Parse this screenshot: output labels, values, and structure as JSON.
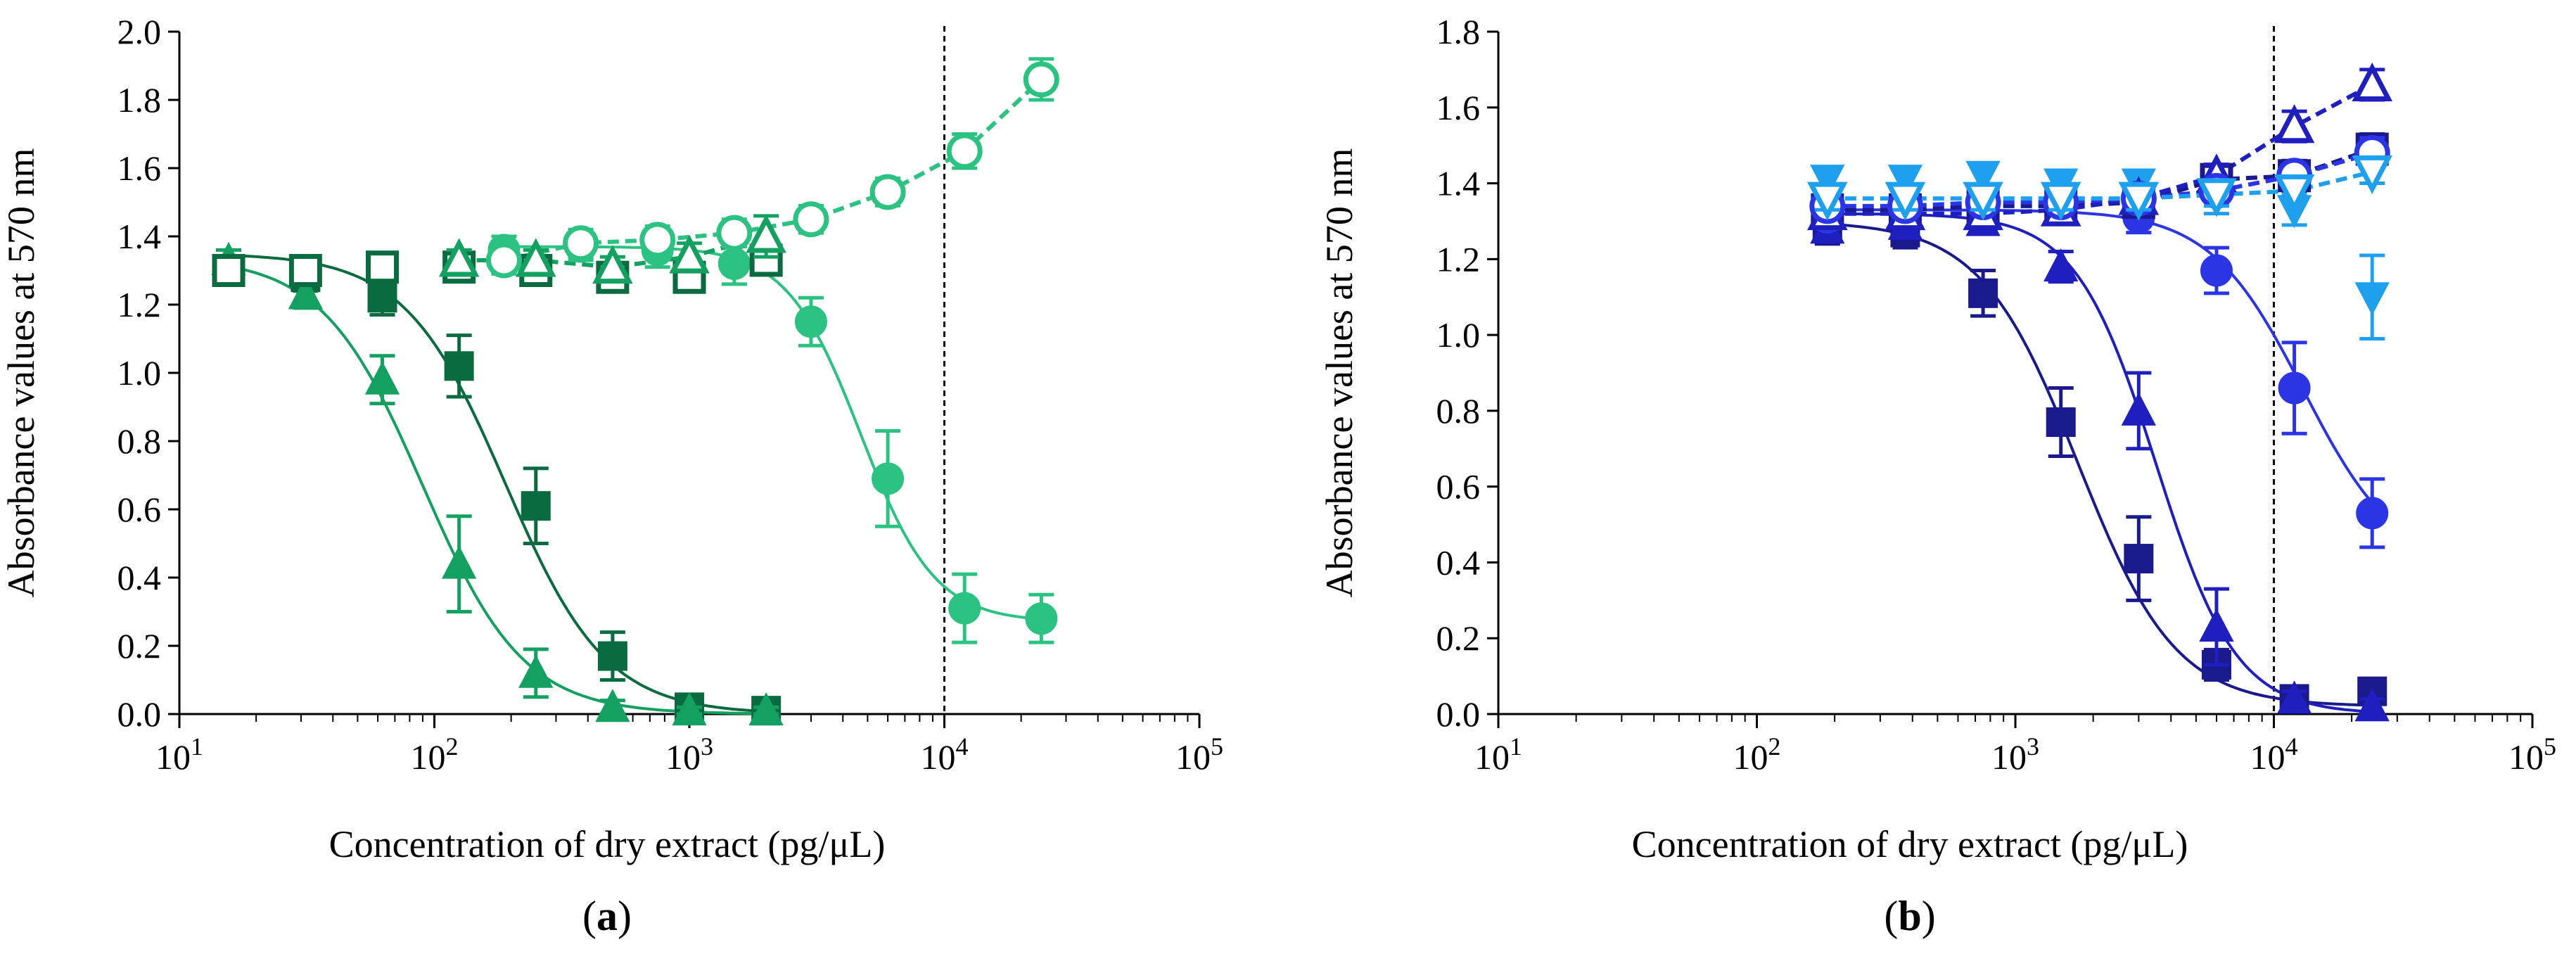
{
  "figure": {
    "panels": [
      {
        "id": "a",
        "letter": "a",
        "open": "(",
        "close": ")"
      },
      {
        "id": "b",
        "letter": "b",
        "open": "(",
        "close": ")"
      }
    ]
  },
  "chart_data": [
    {
      "type": "scatter",
      "panel": "a",
      "xlabel": "Concentration of dry extract (pg/μL)",
      "ylabel": "Absorbance values at 570 nm",
      "xscale": "log",
      "xlim": [
        10,
        100000
      ],
      "ylim": [
        0,
        2.0
      ],
      "y_ticks": [
        0,
        0.2,
        0.4,
        0.6,
        0.8,
        1.0,
        1.2,
        1.4,
        1.6,
        1.8,
        2.0
      ],
      "y_tick_labels": [
        "0.0",
        "0.2",
        "0.4",
        "0.6",
        "0.8",
        "1.0",
        "1.2",
        "1.4",
        "1.6",
        "1.8",
        "2.0"
      ],
      "x_ticks": [
        {
          "base": "10",
          "exp": "1"
        },
        {
          "base": "10",
          "exp": "2"
        },
        {
          "base": "10",
          "exp": "3"
        },
        {
          "base": "10",
          "exp": "4"
        },
        {
          "base": "10",
          "exp": "5"
        }
      ],
      "x_tick_values": [
        10,
        100,
        1000,
        10000,
        100000
      ],
      "vline_x": 10000,
      "series": [
        {
          "name": "dark green squares",
          "marker": "square",
          "filled": true,
          "color": "#0b6b40",
          "line": "solid",
          "x": [
            15.6,
            31.25,
            62.5,
            125,
            250,
            500,
            1000,
            2000
          ],
          "y": [
            1.3,
            1.28,
            1.22,
            1.02,
            0.61,
            0.17,
            0.02,
            0.01
          ],
          "err": [
            0.04,
            0.04,
            0.05,
            0.09,
            0.11,
            0.07,
            0.02,
            0.01
          ]
        },
        {
          "name": "medium green triangles",
          "marker": "triangle",
          "filled": true,
          "color": "#14a060",
          "line": "solid",
          "x": [
            15.6,
            31.25,
            62.5,
            125,
            250,
            500,
            1000,
            2000
          ],
          "y": [
            1.33,
            1.23,
            0.98,
            0.44,
            0.12,
            0.02,
            0.01,
            0.01
          ],
          "err": [
            0.03,
            0.04,
            0.07,
            0.14,
            0.07,
            0.02,
            0.01,
            0.01
          ]
        },
        {
          "name": "light green circles",
          "marker": "circle",
          "filled": true,
          "color": "#2bc282",
          "line": "solid",
          "x": [
            187.5,
            375,
            750,
            1500,
            3000,
            6000,
            12000,
            24000
          ],
          "y": [
            1.36,
            1.37,
            1.36,
            1.32,
            1.15,
            0.69,
            0.31,
            0.28
          ],
          "err": [
            0.04,
            0.04,
            0.05,
            0.06,
            0.07,
            0.14,
            0.1,
            0.07
          ]
        },
        {
          "name": "dark green open squares",
          "marker": "square",
          "filled": false,
          "color": "#0b6b40",
          "line": "none",
          "x": [
            15.6,
            31.25,
            62.5,
            125,
            250,
            500,
            1000,
            2000
          ],
          "y": [
            1.3,
            1.3,
            1.31,
            1.31,
            1.3,
            1.28,
            1.28,
            1.33
          ],
          "err": [
            0.04,
            0.04,
            0.04,
            0.04,
            0.04,
            0.04,
            0.04,
            0.04
          ]
        },
        {
          "name": "medium green open triangles",
          "marker": "triangle",
          "filled": false,
          "color": "#14a060",
          "line": "dashed",
          "x": [
            125,
            250,
            500,
            1000,
            2000
          ],
          "y": [
            1.33,
            1.33,
            1.31,
            1.34,
            1.4
          ],
          "err": [
            0.03,
            0.03,
            0.03,
            0.04,
            0.06
          ]
        },
        {
          "name": "light green open circles",
          "marker": "circle",
          "filled": false,
          "color": "#2bc282",
          "line": "dashed",
          "x": [
            187.5,
            375,
            750,
            1500,
            3000,
            6000,
            12000,
            24000
          ],
          "y": [
            1.33,
            1.38,
            1.39,
            1.41,
            1.45,
            1.53,
            1.65,
            1.86
          ],
          "err": [
            0.04,
            0.04,
            0.04,
            0.04,
            0.04,
            0.04,
            0.05,
            0.06
          ]
        }
      ],
      "curves": [
        {
          "color": "#0b6b40",
          "style": "solid",
          "top": 1.35,
          "bottom": 0.0,
          "ec50": 190,
          "hill": 2.2,
          "xrange": [
            15.6,
            2000
          ]
        },
        {
          "color": "#14a060",
          "style": "solid",
          "top": 1.34,
          "bottom": 0.0,
          "ec50": 90,
          "hill": 2.2,
          "xrange": [
            15.6,
            2000
          ]
        },
        {
          "color": "#2bc282",
          "style": "solid",
          "top": 1.37,
          "bottom": 0.27,
          "ec50": 4700,
          "hill": 3.0,
          "xrange": [
            187.5,
            24000
          ]
        }
      ]
    },
    {
      "type": "scatter",
      "panel": "b",
      "xlabel": "Concentration of dry extract (pg/μL)",
      "ylabel": "Absorbance values at 570 nm",
      "xscale": "log",
      "xlim": [
        10,
        100000
      ],
      "ylim": [
        0,
        1.8
      ],
      "y_ticks": [
        0,
        0.2,
        0.4,
        0.6,
        0.8,
        1.0,
        1.2,
        1.4,
        1.6,
        1.8
      ],
      "y_tick_labels": [
        "0.0",
        "0.2",
        "0.4",
        "0.6",
        "0.8",
        "1.0",
        "1.2",
        "1.4",
        "1.6",
        "1.8"
      ],
      "x_ticks": [
        {
          "base": "10",
          "exp": "1"
        },
        {
          "base": "10",
          "exp": "2"
        },
        {
          "base": "10",
          "exp": "3"
        },
        {
          "base": "10",
          "exp": "4"
        },
        {
          "base": "10",
          "exp": "5"
        }
      ],
      "x_tick_values": [
        10,
        100,
        1000,
        10000,
        100000
      ],
      "vline_x": 10000,
      "series": [
        {
          "name": "navy squares",
          "marker": "square",
          "filled": true,
          "color": "#1a1a8c",
          "line": "solid",
          "x": [
            187.5,
            375,
            750,
            1500,
            3000,
            6000,
            12000,
            24000
          ],
          "y": [
            1.28,
            1.27,
            1.11,
            0.77,
            0.41,
            0.13,
            0.04,
            0.06
          ],
          "err": [
            0.04,
            0.04,
            0.06,
            0.09,
            0.11,
            0.04,
            0.02,
            0.02
          ]
        },
        {
          "name": "blue triangles",
          "marker": "triangle",
          "filled": true,
          "color": "#1f1fc0",
          "line": "solid",
          "x": [
            187.5,
            375,
            750,
            1500,
            3000,
            6000,
            12000,
            24000
          ],
          "y": [
            1.28,
            1.29,
            1.3,
            1.18,
            0.8,
            0.23,
            0.04,
            0.02
          ],
          "err": [
            0.03,
            0.03,
            0.03,
            0.04,
            0.1,
            0.1,
            0.02,
            0.02
          ]
        },
        {
          "name": "bright blue circles",
          "marker": "circle",
          "filled": true,
          "color": "#2b35e6",
          "line": "solid",
          "x": [
            187.5,
            375,
            750,
            1500,
            3000,
            6000,
            12000,
            24000
          ],
          "y": [
            1.31,
            1.32,
            1.32,
            1.33,
            1.31,
            1.17,
            0.86,
            0.53
          ],
          "err": [
            0.03,
            0.03,
            0.03,
            0.03,
            0.04,
            0.06,
            0.12,
            0.09
          ]
        },
        {
          "name": "light blue inverted triangles",
          "marker": "invtriangle",
          "filled": true,
          "color": "#1fa0ee",
          "line": "none",
          "x": [
            187.5,
            375,
            750,
            1500,
            3000,
            6000,
            12000,
            24000
          ],
          "y": [
            1.41,
            1.41,
            1.42,
            1.4,
            1.4,
            1.36,
            1.33,
            1.1
          ],
          "err": [
            0.03,
            0.03,
            0.03,
            0.03,
            0.03,
            0.04,
            0.04,
            0.11
          ]
        },
        {
          "name": "navy open squares",
          "marker": "square",
          "filled": false,
          "color": "#1a1a8c",
          "line": "dashed",
          "x": [
            187.5,
            375,
            750,
            1500,
            3000,
            6000,
            12000,
            24000
          ],
          "y": [
            1.33,
            1.33,
            1.34,
            1.34,
            1.35,
            1.41,
            1.42,
            1.49
          ],
          "err": [
            0.03,
            0.03,
            0.03,
            0.03,
            0.03,
            0.03,
            0.04,
            0.04
          ]
        },
        {
          "name": "blue open triangles",
          "marker": "triangle",
          "filled": false,
          "color": "#1f1fc0",
          "line": "dashed",
          "x": [
            187.5,
            375,
            750,
            1500,
            3000,
            6000,
            12000,
            24000
          ],
          "y": [
            1.32,
            1.32,
            1.32,
            1.33,
            1.36,
            1.42,
            1.55,
            1.66
          ],
          "err": [
            0.03,
            0.03,
            0.03,
            0.03,
            0.03,
            0.03,
            0.04,
            0.04
          ]
        },
        {
          "name": "bright blue open circles",
          "marker": "circle",
          "filled": false,
          "color": "#2b35e6",
          "line": "dashed",
          "x": [
            187.5,
            375,
            750,
            1500,
            3000,
            6000,
            12000,
            24000
          ],
          "y": [
            1.34,
            1.34,
            1.35,
            1.35,
            1.36,
            1.38,
            1.42,
            1.48
          ],
          "err": [
            0.03,
            0.03,
            0.03,
            0.03,
            0.03,
            0.03,
            0.03,
            0.04
          ]
        },
        {
          "name": "light blue open inverted triangles",
          "marker": "invtriangle",
          "filled": false,
          "color": "#1fa0ee",
          "line": "dashed",
          "x": [
            187.5,
            375,
            750,
            1500,
            3000,
            6000,
            12000,
            24000
          ],
          "y": [
            1.36,
            1.36,
            1.36,
            1.36,
            1.36,
            1.37,
            1.38,
            1.43
          ],
          "err": [
            0.03,
            0.03,
            0.03,
            0.03,
            0.03,
            0.03,
            0.03,
            0.03
          ]
        }
      ],
      "curves": [
        {
          "color": "#1a1a8c",
          "style": "solid",
          "top": 1.3,
          "bottom": 0.02,
          "ec50": 1750,
          "hill": 2.3,
          "xrange": [
            187.5,
            24000
          ]
        },
        {
          "color": "#1f1fc0",
          "style": "solid",
          "top": 1.32,
          "bottom": 0.0,
          "ec50": 3500,
          "hill": 2.8,
          "xrange": [
            187.5,
            24000
          ]
        },
        {
          "color": "#2b35e6",
          "style": "solid",
          "top": 1.33,
          "bottom": 0.38,
          "ec50": 13000,
          "hill": 2.4,
          "xrange": [
            187.5,
            24000
          ]
        }
      ]
    }
  ]
}
